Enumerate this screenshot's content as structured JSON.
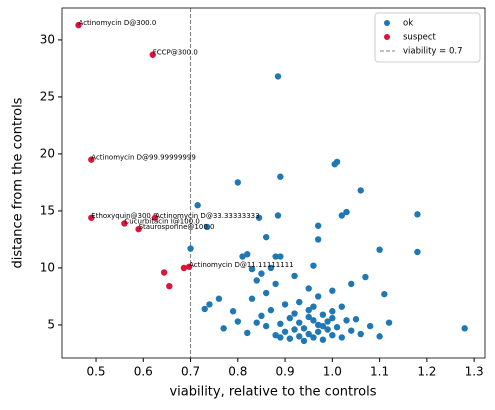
{
  "chart_data": {
    "type": "scatter",
    "xlabel": "viability, relative to the controls",
    "ylabel": "distance from the controls",
    "xlim": [
      0.428,
      1.323
    ],
    "ylim": [
      2.1,
      32.8
    ],
    "xticks": [
      0.5,
      0.6,
      0.7,
      0.8,
      0.9,
      {
        "value": 1,
        "label": "1.0"
      },
      1.1,
      1.2,
      1.3
    ],
    "yticks": [
      5,
      10,
      15,
      20,
      25,
      30
    ],
    "legend": "upper right",
    "vline": {
      "x": 0.7,
      "name": "viability = 0.7",
      "color": "#808080"
    },
    "series": [
      {
        "name": "ok",
        "color": "#1f77b4",
        "x": [
          0.885,
          0.89,
          0.8,
          1.01,
          1.005,
          1.06,
          1.18,
          1.03,
          1.02,
          0.715,
          0.885,
          0.845,
          0.97,
          0.735,
          0.86,
          0.97,
          1.1,
          1.18,
          0.7,
          0.81,
          0.82,
          0.88,
          0.89,
          0.96,
          1.28,
          1.11,
          1.07,
          1.04,
          0.85,
          0.84,
          0.83,
          0.87,
          0.92,
          0.95,
          1.0,
          0.76,
          0.74,
          0.73,
          0.79,
          0.8,
          0.83,
          0.86,
          0.88,
          0.93,
          0.97,
          1.02,
          1.05,
          1.08,
          1.1,
          1.06,
          1.12,
          0.77,
          0.82,
          0.85,
          0.87,
          0.89,
          0.9,
          0.91,
          0.92,
          0.93,
          0.94,
          0.94,
          0.95,
          0.95,
          0.96,
          0.96,
          0.97,
          0.97,
          0.98,
          0.98,
          0.99,
          0.99,
          1.0,
          1.0,
          1.01,
          1.02,
          1.03,
          1.04,
          0.88,
          0.86,
          0.84,
          0.9,
          0.93,
          0.95,
          0.98,
          0.92,
          0.96,
          0.91,
          0.89,
          1.0
        ],
        "values": [
          26.8,
          18.0,
          17.5,
          19.3,
          19.1,
          16.8,
          14.7,
          14.9,
          14.6,
          15.5,
          14.6,
          14.4,
          13.7,
          13.6,
          12.7,
          12.5,
          11.6,
          11.4,
          11.7,
          11.0,
          11.2,
          11.0,
          11.0,
          10.2,
          4.7,
          7.7,
          9.2,
          8.6,
          9.5,
          8.9,
          9.9,
          10.0,
          9.3,
          8.2,
          8.0,
          7.3,
          6.8,
          6.4,
          6.2,
          5.3,
          7.3,
          7.8,
          8.6,
          7.0,
          7.5,
          6.6,
          5.5,
          4.9,
          4.0,
          4.2,
          5.2,
          4.7,
          4.3,
          5.8,
          6.3,
          5.1,
          4.4,
          3.8,
          6.0,
          5.2,
          4.7,
          3.6,
          5.7,
          4.2,
          6.6,
          3.9,
          5.0,
          4.4,
          5.9,
          3.7,
          4.6,
          5.3,
          4.1,
          6.2,
          4.8,
          3.9,
          5.4,
          4.5,
          4.1,
          4.9,
          5.2,
          6.8,
          4.0,
          6.3,
          4.9,
          4.6,
          5.4,
          5.6,
          3.9,
          5.6
        ]
      },
      {
        "name": "suspect",
        "color": "#dc143c",
        "x": [
          0.463,
          0.62,
          0.49,
          0.49,
          0.625,
          0.56,
          0.59,
          0.697,
          0.686,
          0.644,
          0.655
        ],
        "values": [
          31.3,
          28.7,
          19.5,
          14.4,
          14.4,
          13.9,
          13.4,
          10.1,
          10.0,
          9.6,
          8.4
        ],
        "labels": [
          "Actinomycin D@300.0",
          "FCCP@300.0",
          "Actinomycin D@99.99999999",
          "Ethoxyquin@300.0",
          "Actinomycin D@33.33333333",
          "Cucurbitacin I@100.0",
          "Staurosporine@100.0",
          "Actinomycin D@11.11111111",
          null,
          null,
          null
        ]
      }
    ]
  }
}
